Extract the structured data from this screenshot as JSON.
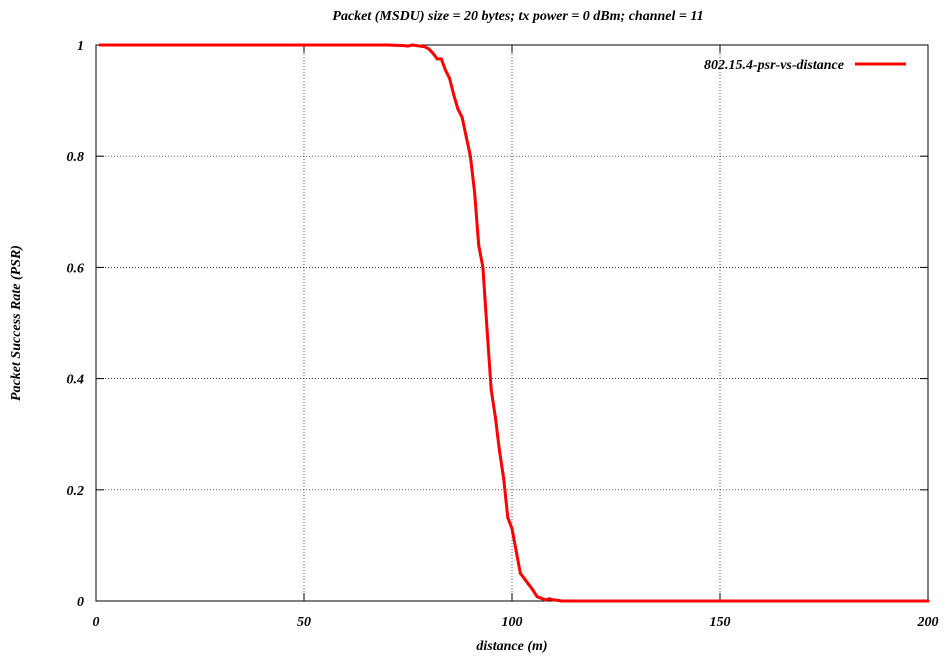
{
  "chart_data": {
    "type": "line",
    "title": "Packet (MSDU) size = 20 bytes; tx power = 0 dBm; channel = 11",
    "xlabel": "distance (m)",
    "ylabel": "Packet Success Rate (PSR)",
    "xlim": [
      0,
      200
    ],
    "ylim": [
      0,
      1
    ],
    "x_ticks": [
      "0",
      "50",
      "100",
      "150",
      "200"
    ],
    "y_ticks": [
      "0",
      "0.2",
      "0.4",
      "0.6",
      "0.8",
      "1"
    ],
    "grid": true,
    "legend_position": "top-right",
    "series": [
      {
        "name": "802.15.4-psr-vs-distance",
        "color": "#ff0000",
        "x": [
          1,
          10,
          20,
          30,
          40,
          50,
          60,
          70,
          74,
          75,
          76,
          77,
          78,
          79,
          80,
          81,
          82,
          83,
          84,
          85,
          86,
          87,
          88,
          89,
          90,
          91,
          92,
          93,
          94,
          95,
          96,
          97,
          98,
          99,
          100,
          101,
          102,
          103,
          104,
          105,
          106,
          107,
          108,
          109,
          110,
          111,
          112,
          115,
          120,
          130,
          140,
          150,
          160,
          170,
          180,
          190,
          200
        ],
        "y": [
          1,
          1,
          1,
          1,
          1,
          1,
          1,
          1,
          0.999,
          0.998,
          1,
          0.999,
          0.998,
          0.997,
          0.993,
          0.985,
          0.975,
          0.975,
          0.955,
          0.94,
          0.91,
          0.885,
          0.87,
          0.835,
          0.8,
          0.735,
          0.64,
          0.6,
          0.49,
          0.38,
          0.33,
          0.27,
          0.22,
          0.15,
          0.13,
          0.09,
          0.05,
          0.04,
          0.03,
          0.02,
          0.008,
          0.005,
          0.002,
          0.004,
          0.002,
          0.001,
          0,
          0,
          0,
          0,
          0,
          0,
          0,
          0,
          0,
          0,
          0
        ]
      }
    ]
  }
}
